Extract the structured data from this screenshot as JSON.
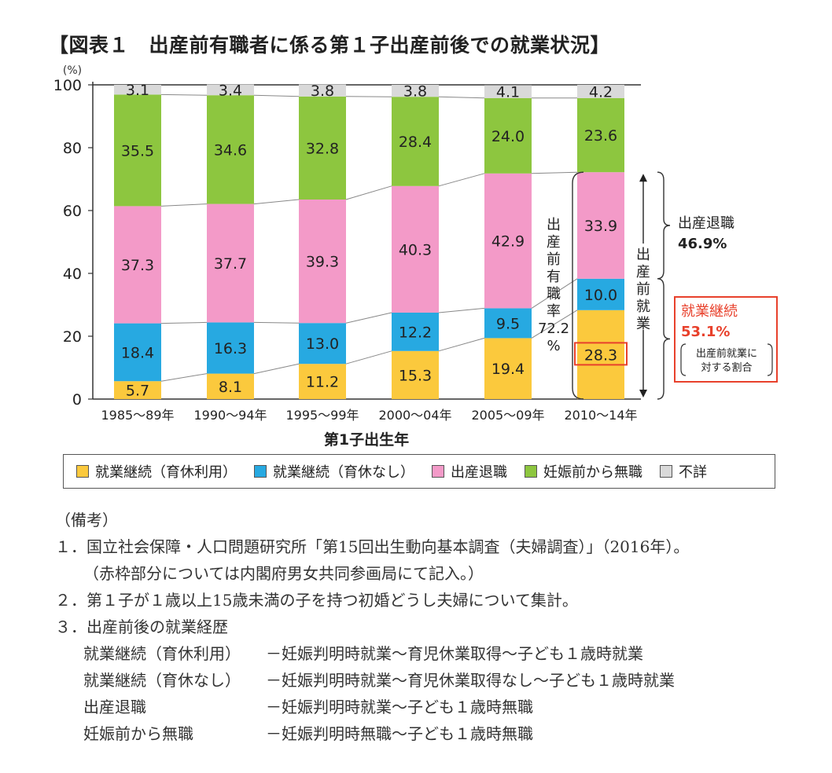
{
  "title": "【図表１　出産前有職者に係る第１子出産前後での就業状況】",
  "chart_data": {
    "type": "bar",
    "stacked": true,
    "ylabel_unit": "(%)",
    "xlabel": "第1子出生年",
    "ylim": [
      0,
      100
    ],
    "yticks": [
      "0",
      "20",
      "40",
      "60",
      "80",
      "100"
    ],
    "categories": [
      "1985～89年",
      "1990～94年",
      "1995～99年",
      "2000～04年",
      "2005～09年",
      "2010～14年"
    ],
    "series": [
      {
        "name": "就業継続（育休利用）",
        "color": "#fbc93d",
        "values": [
          5.7,
          8.1,
          11.2,
          15.3,
          19.4,
          28.3
        ],
        "labels": [
          "5.7",
          "8.1",
          "11.2",
          "15.3",
          "19.4",
          "28.3"
        ]
      },
      {
        "name": "就業継続（育休なし）",
        "color": "#27a9e1",
        "values": [
          18.4,
          16.3,
          13.0,
          12.2,
          9.5,
          10.0
        ],
        "labels": [
          "18.4",
          "16.3",
          "13.0",
          "12.2",
          "9.5",
          "10.0"
        ]
      },
      {
        "name": "出産退職",
        "color": "#f39ac8",
        "values": [
          37.3,
          37.7,
          39.3,
          40.3,
          42.9,
          33.9
        ],
        "labels": [
          "37.3",
          "37.7",
          "39.3",
          "40.3",
          "42.9",
          "33.9"
        ]
      },
      {
        "name": "妊娠前から無職",
        "color": "#8dc63f",
        "values": [
          35.5,
          34.6,
          32.8,
          28.4,
          24.0,
          23.6
        ],
        "labels": [
          "35.5",
          "34.6",
          "32.8",
          "28.4",
          "24.0",
          "23.6"
        ]
      },
      {
        "name": "不詳",
        "color": "#d9d9d9",
        "values": [
          3.1,
          3.4,
          3.8,
          3.8,
          4.1,
          4.2
        ],
        "labels": [
          "3.1",
          "3.4",
          "3.8",
          "3.8",
          "4.1",
          "4.2"
        ]
      }
    ],
    "annotations": {
      "prebirth_employment_rate": "出産前有職率",
      "prebirth_employment_value": "72.2",
      "prebirth_employment_unit": "%",
      "prebirth_employed_label": "出産前就業",
      "quit_label": "出産退職",
      "quit_value": "46.9%",
      "continue_label": "就業継続",
      "continue_value": "53.1%",
      "continue_note_line1": "出産前就業に",
      "continue_note_line2": "対する割合",
      "highlight_color": "#e8412c"
    }
  },
  "legend": [
    {
      "label": "就業継続（育休利用）",
      "color": "#fbc93d"
    },
    {
      "label": "就業継続（育休なし）",
      "color": "#27a9e1"
    },
    {
      "label": "出産退職",
      "color": "#f39ac8"
    },
    {
      "label": "妊娠前から無職",
      "color": "#8dc63f"
    },
    {
      "label": "不詳",
      "color": "#d9d9d9"
    }
  ],
  "notes": {
    "header": "（備考）",
    "n1": "１．国立社会保障・人口問題研究所「第15回出生動向基本調査（夫婦調査）」（2016年）。",
    "n1b": "（赤枠部分については内閣府男女共同参画局にて記入。）",
    "n2": "２．第１子が１歳以上15歳未満の子を持つ初婚どうし夫婦について集計。",
    "n3": "３．出産前後の就業経歴",
    "defs": [
      {
        "term": "就業継続（育休利用）",
        "desc": "－妊娠判明時就業～育児休業取得～子ども１歳時就業"
      },
      {
        "term": "就業継続（育休なし）",
        "desc": "－妊娠判明時就業～育児休業取得なし～子ども１歳時就業"
      },
      {
        "term": "出産退職",
        "desc": "－妊娠判明時就業～子ども１歳時無職"
      },
      {
        "term": "妊娠前から無職",
        "desc": "－妊娠判明時無職～子ども１歳時無職"
      }
    ]
  }
}
